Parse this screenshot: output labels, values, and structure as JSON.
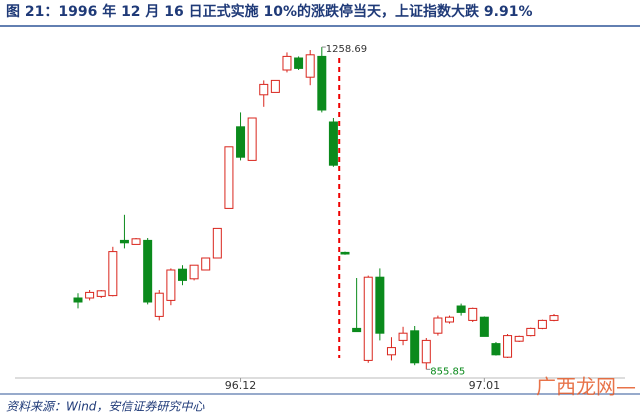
{
  "chart_data": {
    "type": "candlestick",
    "title": "图 21：1996 年 12 月 16 日正式实施 10%的涨跌停当天，上证指数大跌 9.91%",
    "source": "资料来源：Wind，安信证券研究中心",
    "watermark": "广西龙网—",
    "up_color": "#d9251c",
    "down_color": "#0b8a1c",
    "ylim": [
      840,
      1270
    ],
    "categories": [
      null,
      null,
      null,
      null,
      null,
      null,
      null,
      null,
      null,
      null,
      null,
      null,
      null,
      null,
      "96.12",
      null,
      null,
      null,
      null,
      null,
      null,
      null,
      null,
      null,
      null,
      null,
      null,
      null,
      null,
      null,
      null,
      null,
      null,
      null,
      null,
      "97.01",
      null,
      null,
      null,
      null,
      null,
      null
    ],
    "open": [
      945,
      945,
      947,
      948,
      1017,
      1012,
      1017,
      922,
      942,
      981,
      969,
      980,
      995,
      1057,
      1159,
      1117,
      1199,
      1202,
      1230,
      1245,
      1221,
      1247,
      1165,
      1002,
      907,
      867,
      971,
      874,
      892,
      904,
      864,
      901,
      915,
      935,
      917,
      921,
      888,
      871,
      891,
      898,
      907,
      917
    ],
    "high": [
      951,
      955,
      955,
      1009,
      1049,
      1020,
      1020,
      955,
      982,
      986,
      986,
      995,
      1032,
      1134,
      1177,
      1170,
      1217,
      1217,
      1252,
      1247,
      1255,
      1258.69,
      1170,
      1003,
      970,
      973,
      982,
      896,
      909,
      910,
      895,
      923,
      923,
      938,
      933,
      922,
      890,
      900,
      898,
      908,
      918,
      925
    ],
    "low": [
      932,
      942,
      945,
      947,
      1007,
      1012,
      937,
      917,
      936,
      961,
      967,
      980,
      995,
      1057,
      1117,
      1117,
      1184,
      1202,
      1227,
      1230,
      1211,
      1177,
      1109,
      999,
      903,
      864,
      892,
      867,
      886,
      861,
      855.85,
      898,
      913,
      923,
      915,
      897,
      873,
      870,
      890,
      897,
      906,
      916
    ],
    "close": [
      940,
      952,
      954,
      1003,
      1014,
      1019,
      940,
      951,
      980,
      967,
      986,
      995,
      1032,
      1134,
      1121,
      1170,
      1212,
      1217,
      1247,
      1232,
      1249,
      1180,
      1111,
      1000,
      903,
      971,
      901,
      883,
      901,
      864,
      892,
      920,
      921,
      927,
      932,
      897,
      874,
      898,
      897,
      907,
      917,
      923
    ],
    "annotations": [
      {
        "text": "1258.69",
        "value": 1258.69,
        "index": 21
      },
      {
        "text": "855.85",
        "value": 855.85,
        "index": 30
      }
    ]
  }
}
